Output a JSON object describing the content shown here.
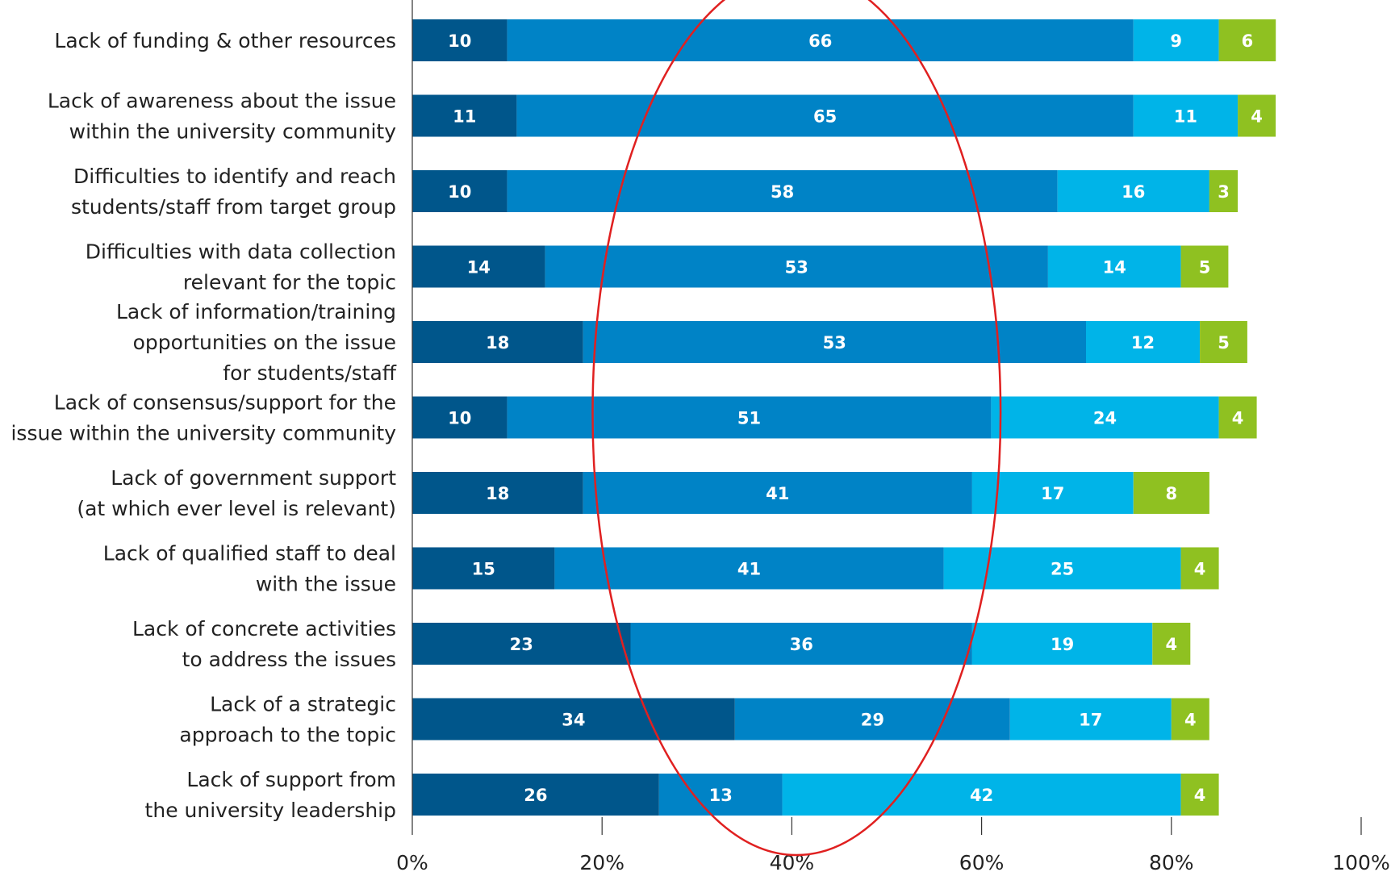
{
  "chart_data": {
    "type": "bar",
    "orientation": "horizontal",
    "stacked": true,
    "categories": [
      [
        "Lack of funding & other resources"
      ],
      [
        "Lack of awareness about the issue",
        "within the university community"
      ],
      [
        "Difficulties to identify and reach",
        "students/staff from target group"
      ],
      [
        "Difficulties with data collection",
        "relevant for the topic"
      ],
      [
        "Lack of information/training",
        "opportunities on the issue",
        "for students/staff"
      ],
      [
        "Lack of consensus/support for the",
        "issue within the university community"
      ],
      [
        "Lack of government support",
        "(at which ever level is relevant)"
      ],
      [
        "Lack of qualified staff to deal",
        "with the issue"
      ],
      [
        "Lack of concrete activities",
        "to address the issues"
      ],
      [
        "Lack of a strategic",
        "approach to the topic"
      ],
      [
        "Lack of support from",
        "the university leadership"
      ]
    ],
    "series": [
      {
        "values": [
          10,
          11,
          10,
          14,
          18,
          10,
          18,
          15,
          23,
          34,
          26
        ],
        "color": "#00568b"
      },
      {
        "values": [
          66,
          65,
          58,
          53,
          53,
          51,
          41,
          41,
          36,
          29,
          13
        ],
        "color": "#0083c6"
      },
      {
        "values": [
          9,
          11,
          16,
          14,
          12,
          24,
          17,
          25,
          19,
          17,
          42
        ],
        "color": "#00b4e8"
      },
      {
        "values": [
          6,
          4,
          3,
          5,
          5,
          4,
          8,
          4,
          4,
          4,
          4
        ],
        "color": "#8fc121"
      }
    ],
    "x_ticks": [
      "0%",
      "20%",
      "40%",
      "60%",
      "80%",
      "100%"
    ],
    "xlim": [
      0,
      100
    ],
    "grid": false,
    "legend": "none",
    "annotation": {
      "shape": "ellipse",
      "color": "#e02020",
      "x_range": [
        19,
        62
      ]
    }
  }
}
